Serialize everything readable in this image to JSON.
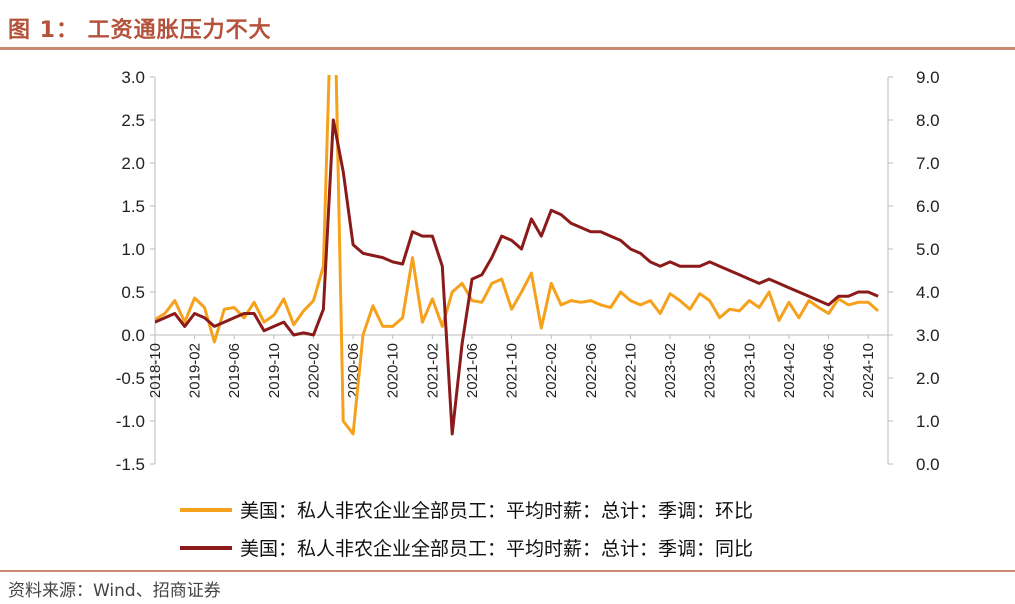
{
  "title": "图 1：  工资通胀压力不大",
  "source": "资料来源：Wind、招商证券",
  "colors": {
    "mom": "#f5a11c",
    "yoy": "#8b1a1a",
    "accent": "#b5523b",
    "rule": "#c8896f"
  },
  "chart_data": {
    "type": "line",
    "title": "",
    "x_labels": [
      "2018-10",
      "2019-02",
      "2019-06",
      "2019-10",
      "2020-02",
      "2020-06",
      "2020-10",
      "2021-02",
      "2021-06",
      "2021-10",
      "2022-02",
      "2022-06",
      "2022-10",
      "2023-02",
      "2023-06",
      "2023-10",
      "2024-02",
      "2024-06",
      "2024-10"
    ],
    "x_range": [
      "2018-10",
      "2024-12"
    ],
    "y_left": {
      "min": -1.5,
      "max": 3.0,
      "step": 0.5
    },
    "y_right": {
      "min": 0.0,
      "max": 9.0,
      "step": 1.0
    },
    "left_tick_labels": [
      "3.0",
      "2.5",
      "2.0",
      "1.5",
      "1.0",
      "0.5",
      "0.0",
      "-0.5",
      "-1.0",
      "-1.5"
    ],
    "right_tick_labels": [
      "9.0",
      "8.0",
      "7.0",
      "6.0",
      "5.0",
      "4.0",
      "3.0",
      "2.0",
      "1.0",
      "0.0"
    ],
    "legend_position": "bottom",
    "series": [
      {
        "name": "美国：私人非农企业全部员工：平均时薪：总计：季调：环比",
        "axis": "left",
        "color": "#f5a11c",
        "start": "2018-10",
        "values": [
          0.18,
          0.25,
          0.4,
          0.15,
          0.43,
          0.32,
          -0.08,
          0.3,
          0.32,
          0.2,
          0.38,
          0.15,
          0.23,
          0.42,
          0.12,
          0.28,
          0.4,
          0.8,
          4.7,
          -1.0,
          -1.15,
          0.0,
          0.34,
          0.1,
          0.1,
          0.2,
          0.9,
          0.15,
          0.42,
          0.1,
          0.5,
          0.6,
          0.4,
          0.38,
          0.6,
          0.65,
          0.3,
          0.5,
          0.72,
          0.08,
          0.6,
          0.35,
          0.4,
          0.38,
          0.4,
          0.35,
          0.32,
          0.5,
          0.4,
          0.35,
          0.4,
          0.25,
          0.48,
          0.4,
          0.3,
          0.48,
          0.4,
          0.2,
          0.3,
          0.28,
          0.4,
          0.32,
          0.5,
          0.17,
          0.38,
          0.2,
          0.4,
          0.32,
          0.25,
          0.42,
          0.35,
          0.38,
          0.38,
          0.28
        ]
      },
      {
        "name": "美国：私人非农企业全部员工：平均时薪：总计：季调：同比",
        "axis": "right",
        "color": "#8b1a1a",
        "start": "2018-10",
        "values": [
          3.3,
          3.4,
          3.5,
          3.2,
          3.5,
          3.4,
          3.2,
          3.3,
          3.4,
          3.5,
          3.5,
          3.1,
          3.2,
          3.3,
          3.0,
          3.05,
          3.0,
          3.6,
          8.0,
          6.8,
          5.1,
          4.9,
          4.85,
          4.8,
          4.7,
          4.65,
          5.4,
          5.3,
          5.3,
          4.6,
          0.7,
          2.8,
          4.3,
          4.4,
          4.8,
          5.3,
          5.2,
          5.0,
          5.7,
          5.3,
          5.9,
          5.8,
          5.6,
          5.5,
          5.4,
          5.4,
          5.3,
          5.2,
          5.0,
          4.9,
          4.7,
          4.6,
          4.7,
          4.6,
          4.6,
          4.6,
          4.7,
          4.6,
          4.5,
          4.4,
          4.3,
          4.2,
          4.3,
          4.2,
          4.1,
          4.0,
          3.9,
          3.8,
          3.7,
          3.9,
          3.9,
          4.0,
          4.0,
          3.9
        ]
      }
    ]
  }
}
